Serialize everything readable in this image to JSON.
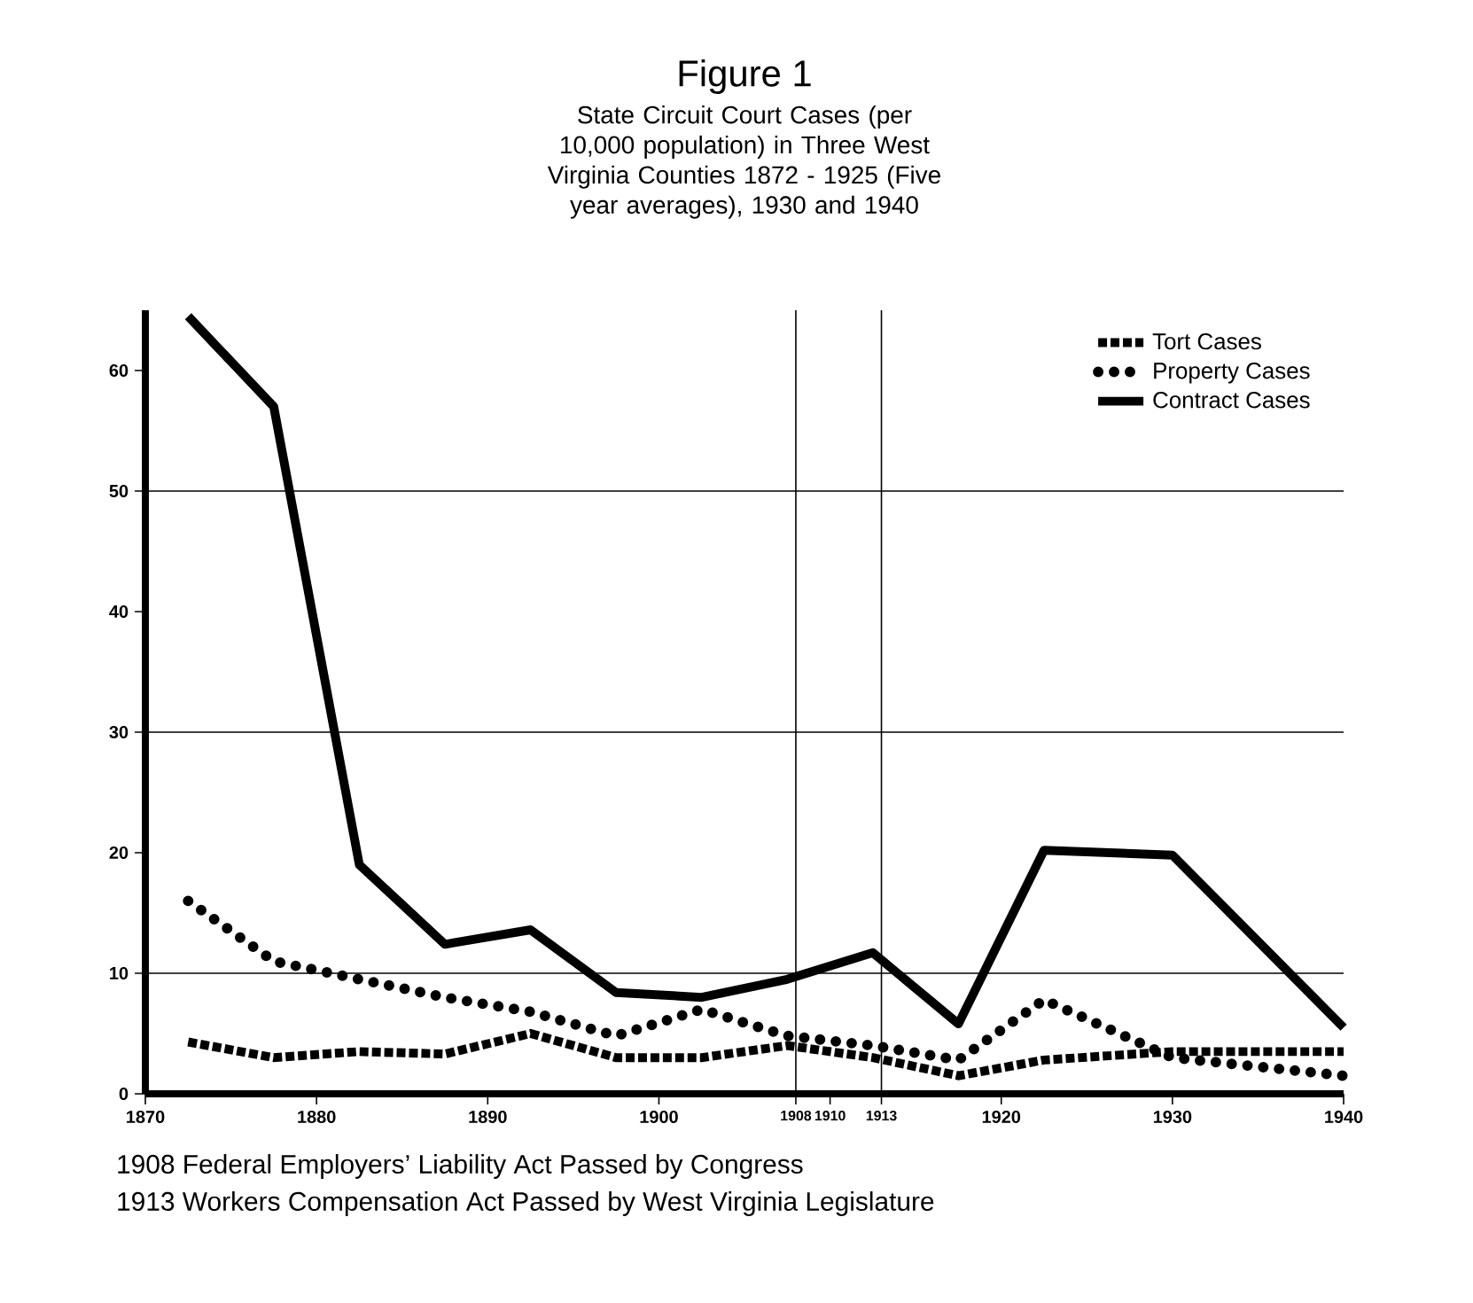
{
  "chart_data": {
    "type": "line",
    "title": "Figure 1",
    "subtitle": "State Circuit Court Cases (per 10,000 population) in Three West Virginia Counties 1872 - 1925 (Five year averages), 1930 and 1940",
    "x": [
      1872.5,
      1877.5,
      1882.5,
      1887.5,
      1892.5,
      1897.5,
      1902.5,
      1907.5,
      1912.5,
      1917.5,
      1922.5,
      1930,
      1940
    ],
    "series": [
      {
        "name": "Tort Cases",
        "color": "#000000",
        "line_style": "dashed",
        "values": [
          4.3,
          3,
          3.5,
          3.3,
          5,
          3,
          3,
          4,
          3,
          1.5,
          2.8,
          3.5,
          3.5
        ]
      },
      {
        "name": "Property Cases",
        "color": "#000000",
        "line_style": "dotted",
        "values": [
          16,
          11,
          9.5,
          8,
          6.8,
          4.8,
          7,
          4.8,
          4,
          2.8,
          7.8,
          3,
          1.5
        ]
      },
      {
        "name": "Contract Cases",
        "color": "#000000",
        "line_style": "solid",
        "values": [
          64.5,
          57,
          19,
          12.4,
          13.6,
          8.4,
          8,
          9.5,
          11.7,
          5.8,
          20.2,
          19.8,
          5.5
        ]
      }
    ],
    "xlim": [
      1870,
      1940
    ],
    "xticks": [
      1870,
      1880,
      1890,
      1900,
      1908,
      1910,
      1913,
      1920,
      1930,
      1940
    ],
    "ylim": [
      0,
      65
    ],
    "yticks": [
      0,
      10,
      20,
      30,
      40,
      50,
      60
    ],
    "ref_lines": [
      {
        "axis": "x",
        "value": 1908
      },
      {
        "axis": "x",
        "value": 1913
      },
      {
        "axis": "y",
        "value": 10
      },
      {
        "axis": "y",
        "value": 30
      },
      {
        "axis": "y",
        "value": 50
      }
    ],
    "legend": "top right",
    "grid": false,
    "annotations": [
      "1908 Federal Employers’ Liability Act Passed by Congress",
      "1913 Workers Compensation Act Passed by West Virginia Legislature"
    ]
  }
}
